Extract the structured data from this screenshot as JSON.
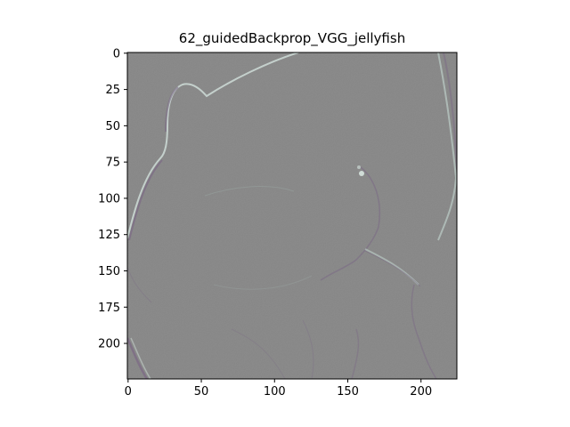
{
  "figure": {
    "title": "62_guidedBackprop_VGG_jellyfish"
  },
  "image": {
    "description_role": "guided-backprop saliency map",
    "background_color": "#8c8c8c",
    "edge_colors": [
      "#c4d0cc",
      "#7c6a86",
      "#b6c6c0"
    ]
  },
  "axes": {
    "x_ticks": [
      "0",
      "50",
      "100",
      "150",
      "200"
    ],
    "y_ticks": [
      "0",
      "25",
      "50",
      "75",
      "100",
      "125",
      "150",
      "175",
      "200"
    ],
    "x_range": [
      0,
      224
    ],
    "y_range": [
      0,
      224
    ]
  }
}
